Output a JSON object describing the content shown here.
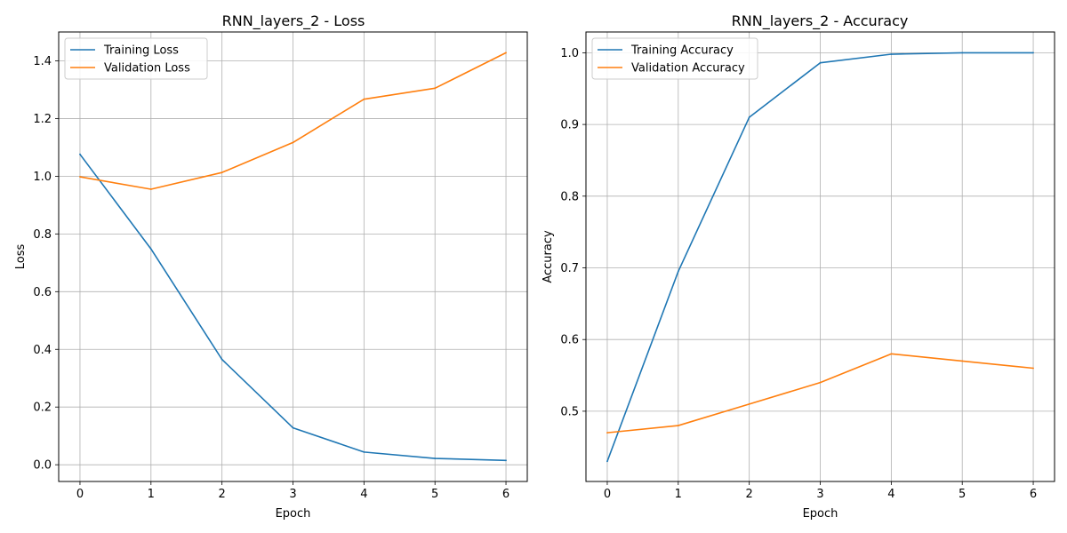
{
  "chart_data": [
    {
      "type": "line",
      "title": "RNN_layers_2 - Loss",
      "xlabel": "Epoch",
      "ylabel": "Loss",
      "x": [
        0,
        1,
        2,
        3,
        4,
        5,
        6
      ],
      "xticks": [
        "0",
        "1",
        "2",
        "3",
        "4",
        "5",
        "6"
      ],
      "yticks": [
        "0.0",
        "0.2",
        "0.4",
        "0.6",
        "0.8",
        "1.0",
        "1.2",
        "1.4"
      ],
      "xlim": [
        -0.3,
        6.3
      ],
      "ylim": [
        -0.058,
        1.5
      ],
      "grid": true,
      "legend_position": "top-left",
      "series": [
        {
          "name": "Training Loss",
          "color": "#1f77b4",
          "values": [
            1.076,
            0.748,
            0.365,
            0.128,
            0.044,
            0.022,
            0.015
          ]
        },
        {
          "name": "Validation Loss",
          "color": "#ff7f0e",
          "values": [
            0.998,
            0.955,
            1.013,
            1.117,
            1.267,
            1.305,
            1.428
          ]
        }
      ]
    },
    {
      "type": "line",
      "title": "RNN_layers_2 - Accuracy",
      "xlabel": "Epoch",
      "ylabel": "Accuracy",
      "x": [
        0,
        1,
        2,
        3,
        4,
        5,
        6
      ],
      "xticks": [
        "0",
        "1",
        "2",
        "3",
        "4",
        "5",
        "6"
      ],
      "yticks": [
        "0.5",
        "0.6",
        "0.7",
        "0.8",
        "0.9",
        "1.0"
      ],
      "xlim": [
        -0.3,
        6.3
      ],
      "ylim": [
        0.402,
        1.029
      ],
      "grid": true,
      "legend_position": "top-left",
      "series": [
        {
          "name": "Training Accuracy",
          "color": "#1f77b4",
          "values": [
            0.43,
            0.695,
            0.91,
            0.986,
            0.998,
            1.0,
            1.0
          ]
        },
        {
          "name": "Validation Accuracy",
          "color": "#ff7f0e",
          "values": [
            0.47,
            0.48,
            0.51,
            0.54,
            0.58,
            0.57,
            0.56
          ]
        }
      ]
    }
  ]
}
